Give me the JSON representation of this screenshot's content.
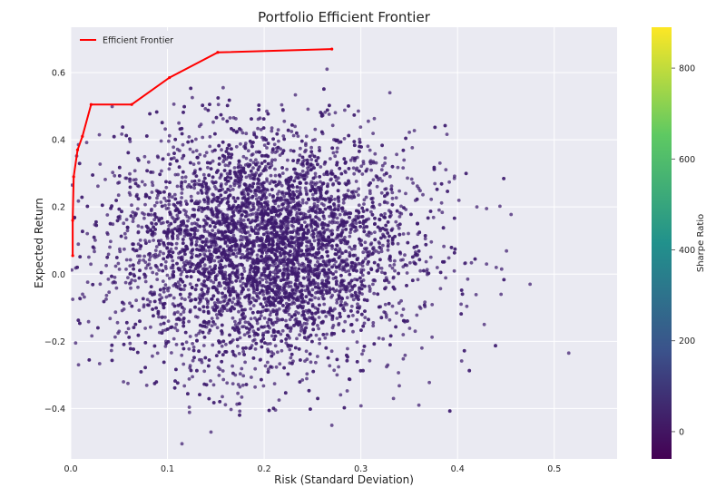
{
  "chart_data": {
    "type": "scatter",
    "title": "Portfolio Efficient Frontier",
    "xlabel": "Risk (Standard Deviation)",
    "ylabel": "Expected Return",
    "xlim": [
      0.0,
      0.565
    ],
    "ylim": [
      -0.55,
      0.735
    ],
    "x_ticks": [
      0.0,
      0.1,
      0.2,
      0.3,
      0.4,
      0.5
    ],
    "x_tick_labels": [
      "0.0",
      "0.1",
      "0.2",
      "0.3",
      "0.4",
      "0.5"
    ],
    "y_ticks": [
      -0.4,
      -0.2,
      0.0,
      0.2,
      0.4,
      0.6
    ],
    "y_tick_labels": [
      "−0.4",
      "−0.2",
      "0.0",
      "0.2",
      "0.4",
      "0.6"
    ],
    "grid": true,
    "legend": {
      "position": "top-left",
      "entries": [
        {
          "label": "Efficient Frontier",
          "color": "#ff0000"
        }
      ]
    },
    "frontier": {
      "name": "Efficient Frontier",
      "color": "#ff0000",
      "points": [
        [
          0.002,
          0.055
        ],
        [
          0.002,
          0.16
        ],
        [
          0.003,
          0.29
        ],
        [
          0.007,
          0.37
        ],
        [
          0.012,
          0.41
        ],
        [
          0.021,
          0.505
        ],
        [
          0.063,
          0.505
        ],
        [
          0.102,
          0.585
        ],
        [
          0.152,
          0.66
        ],
        [
          0.27,
          0.67
        ]
      ]
    },
    "scatter": {
      "description_count": 6000,
      "color": "#3d1a6e",
      "center": [
        0.2,
        0.08
      ],
      "spread": [
        0.075,
        0.17
      ],
      "outliers": [
        [
          0.515,
          -0.235
        ],
        [
          0.475,
          -0.03
        ],
        [
          0.445,
          -0.06
        ],
        [
          0.44,
          0.02
        ],
        [
          0.43,
          0.03
        ],
        [
          0.42,
          0.2
        ],
        [
          0.36,
          -0.39
        ],
        [
          0.27,
          -0.45
        ],
        [
          0.115,
          -0.505
        ],
        [
          0.145,
          -0.47
        ],
        [
          0.002,
          -0.075
        ],
        [
          0.005,
          -0.205
        ],
        [
          0.008,
          -0.27
        ],
        [
          0.265,
          0.61
        ],
        [
          0.33,
          0.54
        ],
        [
          0.43,
          0.195
        ]
      ]
    },
    "colorbar": {
      "label": "Sharpe Ratio",
      "ticks": [
        0,
        200,
        400,
        600,
        800
      ],
      "tick_labels": [
        "0",
        "200",
        "400",
        "600",
        "800"
      ],
      "range": [
        -60,
        890
      ],
      "colormap": [
        "#440154",
        "#3b528b",
        "#21918c",
        "#5ec962",
        "#fde725"
      ]
    }
  }
}
